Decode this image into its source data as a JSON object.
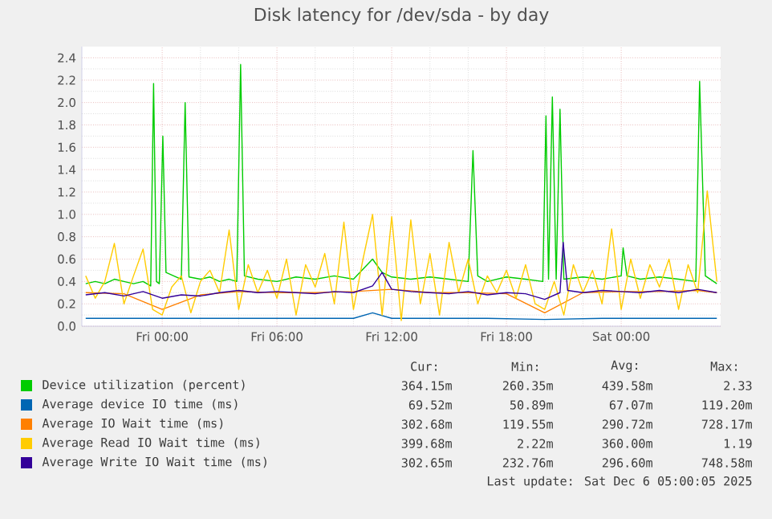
{
  "chart_data": {
    "type": "line",
    "title": "Disk latency for /dev/sda - by day",
    "xlim": [
      "2025-12-04T19:48",
      "2025-12-06T05:12"
    ],
    "ylim": [
      0,
      2.5
    ],
    "xticks": [
      {
        "value": "2025-12-05T00:00",
        "label": "Fri 00:00"
      },
      {
        "value": "2025-12-05T06:00",
        "label": "Fri 06:00"
      },
      {
        "value": "2025-12-05T12:00",
        "label": "Fri 12:00"
      },
      {
        "value": "2025-12-05T18:00",
        "label": "Fri 18:00"
      },
      {
        "value": "2025-12-06T00:00",
        "label": "Sat 00:00"
      }
    ],
    "yticks": [
      {
        "value": 0,
        "label": "0.0"
      },
      {
        "value": 0.2,
        "label": "0.2"
      },
      {
        "value": 0.4,
        "label": "0.4"
      },
      {
        "value": 0.6,
        "label": "0.6"
      },
      {
        "value": 0.8,
        "label": "0.8"
      },
      {
        "value": 1.0,
        "label": "1.0"
      },
      {
        "value": 1.2,
        "label": "1.2"
      },
      {
        "value": 1.4,
        "label": "1.4"
      },
      {
        "value": 1.6,
        "label": "1.6"
      },
      {
        "value": 1.8,
        "label": "1.8"
      },
      {
        "value": 2.0,
        "label": "2.0"
      },
      {
        "value": 2.2,
        "label": "2.2"
      },
      {
        "value": 2.4,
        "label": "2.4"
      }
    ],
    "grid": true,
    "legend": "bottom",
    "marker": "none",
    "line_style": "solid",
    "series": [
      {
        "name": "Device utilization (percent)",
        "color": "#00cc00",
        "x": [
          "2025-12-04T20:00",
          "2025-12-04T20:30",
          "2025-12-04T21:00",
          "2025-12-04T21:30",
          "2025-12-04T22:00",
          "2025-12-04T22:30",
          "2025-12-04T23:00",
          "2025-12-04T23:24",
          "2025-12-04T23:33",
          "2025-12-04T23:42",
          "2025-12-04T23:51",
          "2025-12-05T00:02",
          "2025-12-05T00:12",
          "2025-12-05T00:36",
          "2025-12-05T01:00",
          "2025-12-05T01:12",
          "2025-12-05T01:24",
          "2025-12-05T02:00",
          "2025-12-05T02:30",
          "2025-12-05T03:00",
          "2025-12-05T03:30",
          "2025-12-05T03:54",
          "2025-12-05T04:06",
          "2025-12-05T04:18",
          "2025-12-05T05:00",
          "2025-12-05T06:00",
          "2025-12-05T07:00",
          "2025-12-05T08:00",
          "2025-12-05T09:00",
          "2025-12-05T10:00",
          "2025-12-05T11:00",
          "2025-12-05T11:30",
          "2025-12-05T12:00",
          "2025-12-05T13:00",
          "2025-12-05T14:00",
          "2025-12-05T15:00",
          "2025-12-05T16:00",
          "2025-12-05T16:15",
          "2025-12-05T16:30",
          "2025-12-05T17:00",
          "2025-12-05T18:00",
          "2025-12-05T19:00",
          "2025-12-05T19:54",
          "2025-12-05T20:04",
          "2025-12-05T20:12",
          "2025-12-05T20:24",
          "2025-12-05T20:36",
          "2025-12-05T20:48",
          "2025-12-05T21:00",
          "2025-12-05T22:00",
          "2025-12-05T23:00",
          "2025-12-06T00:00",
          "2025-12-06T00:06",
          "2025-12-06T00:18",
          "2025-12-06T01:00",
          "2025-12-06T02:00",
          "2025-12-06T03:00",
          "2025-12-06T03:54",
          "2025-12-06T04:06",
          "2025-12-06T04:24",
          "2025-12-06T05:00"
        ],
        "values": [
          0.38,
          0.4,
          0.38,
          0.42,
          0.4,
          0.38,
          0.4,
          0.36,
          2.17,
          0.4,
          0.38,
          1.7,
          0.48,
          0.45,
          0.42,
          2.0,
          0.44,
          0.42,
          0.44,
          0.4,
          0.42,
          0.4,
          2.34,
          0.45,
          0.42,
          0.4,
          0.44,
          0.42,
          0.45,
          0.42,
          0.6,
          0.48,
          0.44,
          0.42,
          0.44,
          0.42,
          0.4,
          1.57,
          0.45,
          0.4,
          0.44,
          0.42,
          0.4,
          1.88,
          0.42,
          2.05,
          0.42,
          1.94,
          0.42,
          0.44,
          0.42,
          0.45,
          0.7,
          0.45,
          0.42,
          0.44,
          0.42,
          0.4,
          2.19,
          0.45,
          0.38
        ]
      },
      {
        "name": "Average device IO time (ms)",
        "color": "#0066b3",
        "x": [
          "2025-12-04T20:00",
          "2025-12-04T23:00",
          "2025-12-05T02:00",
          "2025-12-05T05:00",
          "2025-12-05T08:00",
          "2025-12-05T10:00",
          "2025-12-05T11:00",
          "2025-12-05T12:00",
          "2025-12-05T14:00",
          "2025-12-05T17:00",
          "2025-12-05T20:00",
          "2025-12-05T23:00",
          "2025-12-06T02:00",
          "2025-12-06T05:00"
        ],
        "values": [
          0.07,
          0.07,
          0.07,
          0.07,
          0.07,
          0.07,
          0.12,
          0.07,
          0.07,
          0.07,
          0.06,
          0.07,
          0.07,
          0.07
        ]
      },
      {
        "name": "Average IO Wait time (ms)",
        "color": "#ff8000",
        "x": [
          "2025-12-04T20:00",
          "2025-12-04T22:00",
          "2025-12-05T00:00",
          "2025-12-05T02:00",
          "2025-12-05T04:00",
          "2025-12-05T06:00",
          "2025-12-05T08:00",
          "2025-12-05T10:00",
          "2025-12-05T12:00",
          "2025-12-05T14:00",
          "2025-12-05T16:00",
          "2025-12-05T18:00",
          "2025-12-05T20:00",
          "2025-12-05T22:00",
          "2025-12-06T00:00",
          "2025-12-06T02:00",
          "2025-12-06T04:00",
          "2025-12-06T05:00"
        ],
        "values": [
          0.3,
          0.29,
          0.15,
          0.28,
          0.31,
          0.3,
          0.3,
          0.31,
          0.33,
          0.3,
          0.3,
          0.29,
          0.12,
          0.3,
          0.31,
          0.31,
          0.32,
          0.3
        ]
      },
      {
        "name": "Average Read IO Wait time (ms)",
        "color": "#ffcc00",
        "x": [
          "2025-12-04T20:00",
          "2025-12-04T20:30",
          "2025-12-04T21:00",
          "2025-12-04T21:30",
          "2025-12-04T22:00",
          "2025-12-04T22:30",
          "2025-12-04T23:00",
          "2025-12-04T23:30",
          "2025-12-05T00:00",
          "2025-12-05T00:30",
          "2025-12-05T01:00",
          "2025-12-05T01:30",
          "2025-12-05T02:00",
          "2025-12-05T02:30",
          "2025-12-05T03:00",
          "2025-12-05T03:30",
          "2025-12-05T04:00",
          "2025-12-05T04:30",
          "2025-12-05T05:00",
          "2025-12-05T05:30",
          "2025-12-05T06:00",
          "2025-12-05T06:30",
          "2025-12-05T07:00",
          "2025-12-05T07:30",
          "2025-12-05T08:00",
          "2025-12-05T08:30",
          "2025-12-05T09:00",
          "2025-12-05T09:30",
          "2025-12-05T10:00",
          "2025-12-05T10:30",
          "2025-12-05T11:00",
          "2025-12-05T11:30",
          "2025-12-05T12:00",
          "2025-12-05T12:30",
          "2025-12-05T13:00",
          "2025-12-05T13:30",
          "2025-12-05T14:00",
          "2025-12-05T14:30",
          "2025-12-05T15:00",
          "2025-12-05T15:30",
          "2025-12-05T16:00",
          "2025-12-05T16:30",
          "2025-12-05T17:00",
          "2025-12-05T17:30",
          "2025-12-05T18:00",
          "2025-12-05T18:30",
          "2025-12-05T19:00",
          "2025-12-05T19:30",
          "2025-12-05T20:00",
          "2025-12-05T20:30",
          "2025-12-05T21:00",
          "2025-12-05T21:30",
          "2025-12-05T22:00",
          "2025-12-05T22:30",
          "2025-12-05T23:00",
          "2025-12-05T23:30",
          "2025-12-06T00:00",
          "2025-12-06T00:30",
          "2025-12-06T01:00",
          "2025-12-06T01:30",
          "2025-12-06T02:00",
          "2025-12-06T02:30",
          "2025-12-06T03:00",
          "2025-12-06T03:30",
          "2025-12-06T04:00",
          "2025-12-06T04:30",
          "2025-12-06T05:00"
        ],
        "values": [
          0.45,
          0.25,
          0.4,
          0.74,
          0.2,
          0.45,
          0.69,
          0.15,
          0.1,
          0.35,
          0.45,
          0.12,
          0.4,
          0.5,
          0.3,
          0.86,
          0.15,
          0.55,
          0.3,
          0.5,
          0.25,
          0.6,
          0.1,
          0.55,
          0.35,
          0.65,
          0.2,
          0.93,
          0.15,
          0.6,
          1.0,
          0.1,
          0.98,
          0.05,
          0.95,
          0.2,
          0.65,
          0.1,
          0.75,
          0.3,
          0.6,
          0.2,
          0.45,
          0.3,
          0.5,
          0.25,
          0.55,
          0.2,
          0.15,
          0.4,
          0.1,
          0.55,
          0.3,
          0.5,
          0.2,
          0.87,
          0.15,
          0.6,
          0.25,
          0.55,
          0.35,
          0.6,
          0.15,
          0.55,
          0.3,
          1.21,
          0.4
        ]
      },
      {
        "name": "Average Write IO Wait time (ms)",
        "color": "#330099",
        "x": [
          "2025-12-04T20:00",
          "2025-12-04T21:00",
          "2025-12-04T22:00",
          "2025-12-04T23:00",
          "2025-12-05T00:00",
          "2025-12-05T01:00",
          "2025-12-05T02:00",
          "2025-12-05T03:00",
          "2025-12-05T04:00",
          "2025-12-05T05:00",
          "2025-12-05T06:00",
          "2025-12-05T07:00",
          "2025-12-05T08:00",
          "2025-12-05T09:00",
          "2025-12-05T10:00",
          "2025-12-05T11:00",
          "2025-12-05T11:30",
          "2025-12-05T12:00",
          "2025-12-05T13:00",
          "2025-12-05T14:00",
          "2025-12-05T15:00",
          "2025-12-05T16:00",
          "2025-12-05T17:00",
          "2025-12-05T18:00",
          "2025-12-05T19:00",
          "2025-12-05T20:00",
          "2025-12-05T20:48",
          "2025-12-05T20:58",
          "2025-12-05T21:12",
          "2025-12-05T22:00",
          "2025-12-05T23:00",
          "2025-12-06T00:00",
          "2025-12-06T01:00",
          "2025-12-06T02:00",
          "2025-12-06T03:00",
          "2025-12-06T04:00",
          "2025-12-06T05:00"
        ],
        "values": [
          0.28,
          0.3,
          0.27,
          0.31,
          0.25,
          0.28,
          0.27,
          0.3,
          0.32,
          0.3,
          0.31,
          0.3,
          0.29,
          0.31,
          0.3,
          0.36,
          0.48,
          0.33,
          0.31,
          0.3,
          0.29,
          0.31,
          0.28,
          0.3,
          0.29,
          0.24,
          0.3,
          0.75,
          0.32,
          0.3,
          0.32,
          0.31,
          0.3,
          0.32,
          0.3,
          0.33,
          0.3
        ]
      }
    ],
    "annotations": [
      "Cur:",
      "Min:",
      "Avg:",
      "Max:",
      "364.15m",
      "260.35m",
      "439.58m",
      "2.33",
      "69.52m",
      "50.89m",
      "67.07m",
      "119.20m",
      "302.68m",
      "119.55m",
      "290.72m",
      "728.17m",
      "399.68m",
      "2.22m",
      "360.00m",
      "1.19",
      "302.65m",
      "232.76m",
      "296.60m",
      "748.58m",
      "Last update: Sat Dec  6 05:00:05 2025"
    ]
  }
}
